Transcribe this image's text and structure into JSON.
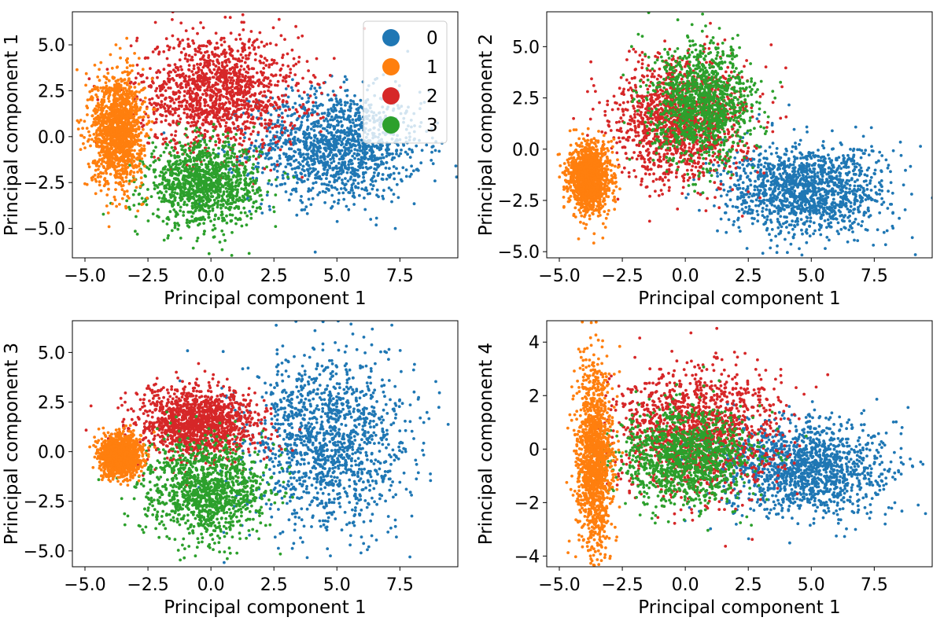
{
  "chart_data": [
    {
      "type": "scatter",
      "xlabel": "Principal component 1",
      "ylabel": "Principal component 1",
      "xlim": [
        -5.5,
        9.8
      ],
      "ylim": [
        -6.6,
        6.8
      ],
      "xticks": [
        -5.0,
        -2.5,
        0.0,
        2.5,
        5.0,
        7.5
      ],
      "yticks": [
        -5.0,
        -2.5,
        0.0,
        2.5,
        5.0
      ],
      "legend": {
        "position": "top-right",
        "entries": [
          "0",
          "1",
          "2",
          "3"
        ]
      },
      "series": [
        {
          "name": "0",
          "color": "#1f77b4",
          "center": [
            5.0,
            -0.5
          ],
          "spread": [
            1.7,
            1.5
          ],
          "points": 1400
        },
        {
          "name": "2",
          "color": "#d62728",
          "center": [
            0.3,
            2.4
          ],
          "spread": [
            1.6,
            1.6
          ],
          "points": 1400
        },
        {
          "name": "3",
          "color": "#2ca02c",
          "center": [
            -0.3,
            -2.6
          ],
          "spread": [
            1.1,
            1.1
          ],
          "points": 1200
        },
        {
          "name": "1",
          "color": "#ff7f0e",
          "center": [
            -3.7,
            0.4
          ],
          "spread": [
            0.5,
            1.5
          ],
          "points": 1400
        }
      ]
    },
    {
      "type": "scatter",
      "xlabel": "Principal component 1",
      "ylabel": "Principal component 2",
      "xlim": [
        -5.5,
        9.8
      ],
      "ylim": [
        -5.3,
        6.7
      ],
      "xticks": [
        -5.0,
        -2.5,
        0.0,
        2.5,
        5.0,
        7.5
      ],
      "yticks": [
        -5.0,
        -2.5,
        0.0,
        2.5,
        5.0
      ],
      "series": [
        {
          "name": "0",
          "color": "#1f77b4",
          "center": [
            4.8,
            -2.0
          ],
          "spread": [
            1.6,
            1.1
          ],
          "points": 1400
        },
        {
          "name": "2",
          "color": "#d62728",
          "center": [
            -0.2,
            1.4
          ],
          "spread": [
            1.3,
            1.5
          ],
          "points": 1400
        },
        {
          "name": "3",
          "color": "#2ca02c",
          "center": [
            0.7,
            2.2
          ],
          "spread": [
            1.0,
            1.4
          ],
          "points": 1200
        },
        {
          "name": "1",
          "color": "#ff7f0e",
          "center": [
            -3.8,
            -1.4
          ],
          "spread": [
            0.4,
            0.8
          ],
          "points": 1400
        }
      ]
    },
    {
      "type": "scatter",
      "xlabel": "Principal component 1",
      "ylabel": "Principal component 3",
      "xlim": [
        -5.5,
        9.8
      ],
      "ylim": [
        -5.8,
        6.6
      ],
      "xticks": [
        -5.0,
        -2.5,
        0.0,
        2.5,
        5.0,
        7.5
      ],
      "yticks": [
        -5.0,
        -2.5,
        0.0,
        2.5,
        5.0
      ],
      "series": [
        {
          "name": "0",
          "color": "#1f77b4",
          "center": [
            4.6,
            0.5
          ],
          "spread": [
            1.6,
            2.2
          ],
          "points": 1400
        },
        {
          "name": "2",
          "color": "#d62728",
          "center": [
            -0.5,
            1.4
          ],
          "spread": [
            1.2,
            0.9
          ],
          "points": 1400
        },
        {
          "name": "3",
          "color": "#2ca02c",
          "center": [
            -0.2,
            -1.9
          ],
          "spread": [
            1.2,
            1.2
          ],
          "points": 1200
        },
        {
          "name": "1",
          "color": "#ff7f0e",
          "center": [
            -3.6,
            -0.2
          ],
          "spread": [
            0.4,
            0.5
          ],
          "points": 1400
        }
      ]
    },
    {
      "type": "scatter",
      "xlabel": "Principal component 1",
      "ylabel": "Principal component 4",
      "xlim": [
        -5.5,
        9.8
      ],
      "ylim": [
        -4.4,
        4.8
      ],
      "xticks": [
        -5.0,
        -2.5,
        0.0,
        2.5,
        5.0,
        7.5
      ],
      "yticks": [
        -4,
        -2,
        0,
        2,
        4
      ],
      "series": [
        {
          "name": "0",
          "color": "#1f77b4",
          "center": [
            4.6,
            -0.7
          ],
          "spread": [
            1.7,
            0.9
          ],
          "points": 1400
        },
        {
          "name": "2",
          "color": "#d62728",
          "center": [
            0.4,
            0.6
          ],
          "spread": [
            1.6,
            1.2
          ],
          "points": 1400
        },
        {
          "name": "3",
          "color": "#2ca02c",
          "center": [
            0.0,
            -0.3
          ],
          "spread": [
            1.3,
            0.9
          ],
          "points": 1200
        },
        {
          "name": "1",
          "color": "#ff7f0e",
          "center": [
            -3.6,
            -0.4
          ],
          "spread": [
            0.35,
            1.7
          ],
          "points": 1400
        }
      ]
    }
  ]
}
